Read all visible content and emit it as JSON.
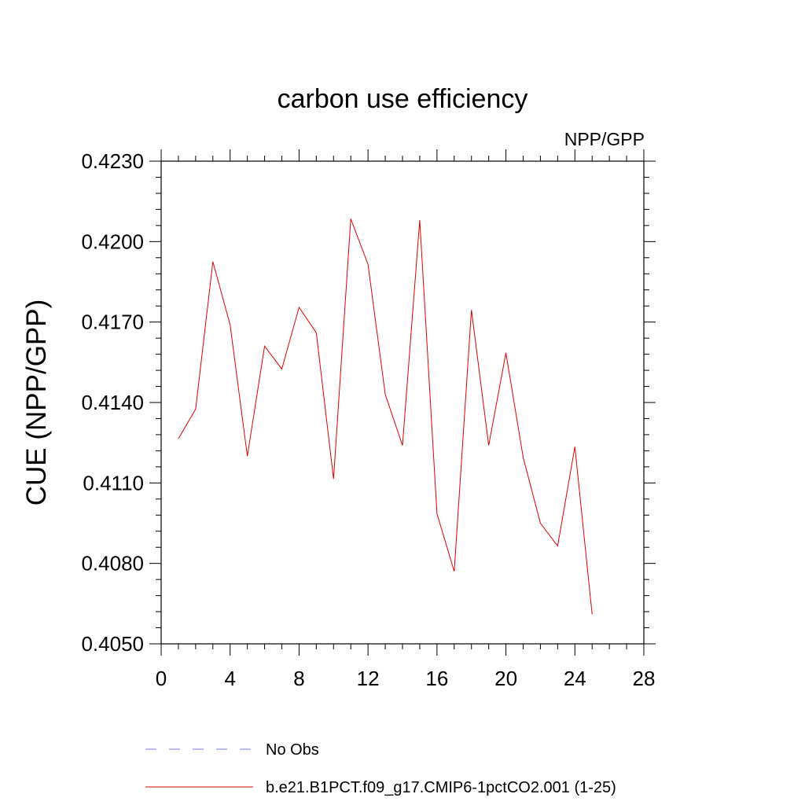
{
  "chart_data": {
    "type": "line",
    "title": "carbon use efficiency",
    "subtitle": "NPP/GPP",
    "ylabel": "CUE  (NPP/GPP)",
    "xlabel": "",
    "xlim": [
      0,
      28
    ],
    "ylim": [
      0.405,
      0.423
    ],
    "xticks": [
      0,
      4,
      8,
      12,
      16,
      20,
      24,
      28
    ],
    "yticks": [
      "0.4050",
      "0.4080",
      "0.4110",
      "0.4140",
      "0.4170",
      "0.4200",
      "0.4230"
    ],
    "series": [
      {
        "name": "b.e21.B1PCT.f09_g17.CMIP6-1pctCO2.001 (1-25)",
        "color": "#e00000",
        "x": [
          1,
          2,
          3,
          4,
          5,
          6,
          7,
          8,
          9,
          10,
          11,
          12,
          13,
          14,
          15,
          16,
          17,
          18,
          19,
          20,
          21,
          22,
          23,
          24,
          25
        ],
        "y": [
          0.41265,
          0.41375,
          0.41925,
          0.4169,
          0.412,
          0.4161,
          0.41525,
          0.41755,
          0.4166,
          0.41115,
          0.42085,
          0.41915,
          0.4143,
          0.4124,
          0.4208,
          0.40985,
          0.4077,
          0.41745,
          0.4124,
          0.41585,
          0.41195,
          0.4095,
          0.40865,
          0.41235,
          0.4061
        ]
      }
    ],
    "legend": {
      "placement": "bottom",
      "entries": [
        {
          "label": "No Obs",
          "color": "#7777dd",
          "style": "dashed"
        },
        {
          "label": "b.e21.B1PCT.f09_g17.CMIP6-1pctCO2.001 (1-25)",
          "color": "#e00000",
          "style": "solid"
        }
      ]
    },
    "grid": false
  }
}
